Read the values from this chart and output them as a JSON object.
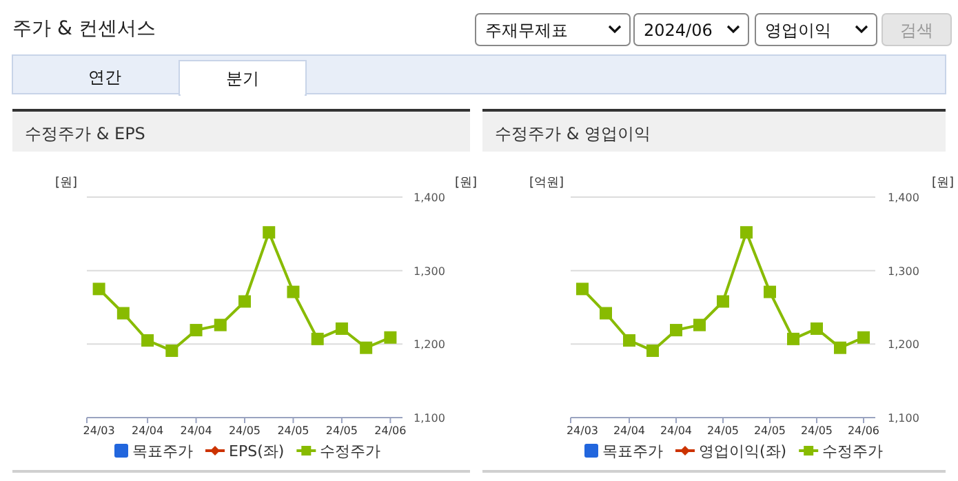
{
  "chart_data": [
    {
      "type": "other",
      "title": "주가 & 컨센서스",
      "annotations": [
        "주재무제표",
        "2024/06",
        "영업이익",
        "검색",
        "연간",
        "분기"
      ]
    },
    {
      "type": "line",
      "title": "수정주가 & EPS",
      "ylabel": "[원]",
      "y2label": "[원]",
      "categories": [
        "24/03",
        null,
        "24/04",
        null,
        "24/04",
        null,
        "24/05",
        null,
        "24/05",
        null,
        "24/05",
        null,
        "24/06"
      ],
      "y2lim": [
        1100,
        1400
      ],
      "y2ticks": [
        {
          "value": 1100,
          "label": "1,100"
        },
        {
          "value": 1200,
          "label": "1,200"
        },
        {
          "value": 1300,
          "label": "1,300"
        },
        {
          "value": 1400,
          "label": "1,400"
        }
      ],
      "grid": "y",
      "legend": "bottom",
      "series": [
        {
          "name": "목표주가",
          "type": "bar",
          "color": "#2266dd",
          "values": [
            null,
            null,
            null,
            null,
            null,
            null,
            null,
            null,
            null,
            null,
            null,
            null,
            null
          ]
        },
        {
          "name": "EPS(좌)",
          "type": "line",
          "marker": "diamond",
          "color": "#cc3300",
          "values": [
            null,
            null,
            null,
            null,
            null,
            null,
            null,
            null,
            null,
            null,
            null,
            null,
            null
          ]
        },
        {
          "name": "수정주가",
          "type": "line",
          "marker": "square",
          "color": "#88bb00",
          "axis": "y2",
          "values": [
            1275,
            1242,
            1205,
            1191,
            1219,
            1226,
            1258,
            1352,
            1271,
            1207,
            1221,
            1195,
            1209
          ]
        }
      ]
    },
    {
      "type": "line",
      "title": "수정주가 & 영업이익",
      "ylabel": "[억원]",
      "y2label": "[원]",
      "categories": [
        "24/03",
        null,
        "24/04",
        null,
        "24/04",
        null,
        "24/05",
        null,
        "24/05",
        null,
        "24/05",
        null,
        "24/06"
      ],
      "y2lim": [
        1100,
        1400
      ],
      "y2ticks": [
        {
          "value": 1100,
          "label": "1,100"
        },
        {
          "value": 1200,
          "label": "1,200"
        },
        {
          "value": 1300,
          "label": "1,300"
        },
        {
          "value": 1400,
          "label": "1,400"
        }
      ],
      "grid": "y",
      "legend": "bottom",
      "series": [
        {
          "name": "목표주가",
          "type": "bar",
          "color": "#2266dd",
          "values": [
            null,
            null,
            null,
            null,
            null,
            null,
            null,
            null,
            null,
            null,
            null,
            null,
            null
          ]
        },
        {
          "name": "영업이익(좌)",
          "type": "line",
          "marker": "diamond",
          "color": "#cc3300",
          "values": [
            null,
            null,
            null,
            null,
            null,
            null,
            null,
            null,
            null,
            null,
            null,
            null,
            null
          ]
        },
        {
          "name": "수정주가",
          "type": "line",
          "marker": "square",
          "color": "#88bb00",
          "axis": "y2",
          "values": [
            1275,
            1242,
            1205,
            1191,
            1219,
            1226,
            1258,
            1352,
            1271,
            1207,
            1221,
            1195,
            1209
          ]
        }
      ]
    }
  ]
}
